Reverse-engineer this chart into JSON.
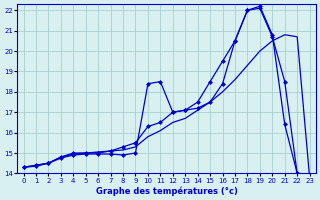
{
  "title": "Graphe des températures (°c)",
  "bg_color": "#d8f0f0",
  "grid_color": "#a0c8c8",
  "line_color": "#0000cc",
  "xlim": [
    -0.5,
    23.5
  ],
  "ylim": [
    14,
    22.3
  ],
  "yticks": [
    14,
    15,
    16,
    17,
    18,
    19,
    20,
    21,
    22
  ],
  "xticks": [
    0,
    1,
    2,
    3,
    4,
    5,
    6,
    7,
    8,
    9,
    10,
    11,
    12,
    13,
    14,
    15,
    16,
    17,
    18,
    19,
    20,
    21,
    22,
    23
  ],
  "series1_x": [
    0,
    1,
    2,
    3,
    4,
    5,
    6,
    7,
    8,
    9,
    10,
    11,
    12,
    13,
    14,
    15,
    16,
    17,
    18,
    19,
    20,
    21,
    22,
    23
  ],
  "series1_y": [
    14.3,
    14.4,
    14.5,
    14.8,
    14.95,
    15.0,
    15.05,
    15.1,
    15.15,
    15.3,
    15.8,
    16.1,
    16.5,
    16.7,
    17.1,
    17.5,
    18.0,
    18.6,
    19.3,
    20.0,
    20.5,
    20.8,
    20.7,
    13.8
  ],
  "series2_x": [
    0,
    1,
    2,
    3,
    4,
    5,
    6,
    7,
    8,
    9,
    10,
    11,
    12,
    13,
    14,
    15,
    16,
    17,
    18,
    19,
    20,
    21,
    22,
    23
  ],
  "series2_y": [
    14.3,
    14.4,
    14.5,
    14.8,
    15.0,
    15.0,
    15.0,
    15.1,
    15.3,
    15.5,
    16.3,
    16.5,
    17.0,
    17.1,
    17.5,
    18.5,
    19.5,
    20.5,
    22.0,
    22.1,
    20.7,
    18.5,
    14.0,
    13.8
  ],
  "series3_x": [
    0,
    1,
    2,
    3,
    4,
    5,
    6,
    7,
    8,
    9,
    10,
    11,
    12,
    13,
    14,
    15,
    16,
    17,
    18,
    19,
    20,
    21,
    22,
    23
  ],
  "series3_y": [
    14.3,
    14.35,
    14.5,
    14.75,
    14.9,
    14.95,
    14.95,
    14.95,
    14.9,
    15.0,
    18.4,
    18.5,
    17.0,
    17.1,
    17.2,
    17.5,
    18.4,
    20.5,
    22.0,
    22.2,
    20.8,
    16.4,
    14.0,
    13.8
  ]
}
